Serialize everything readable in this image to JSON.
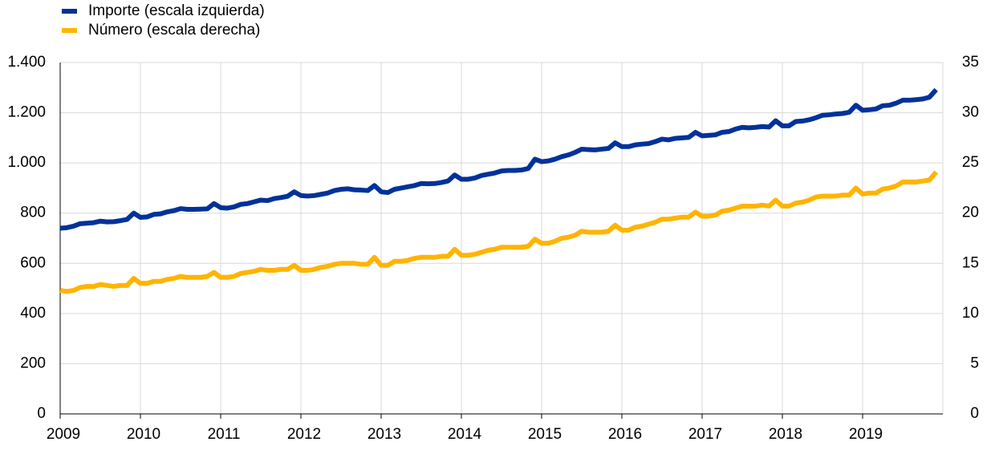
{
  "chart_data": {
    "type": "line",
    "categories": [
      "2009",
      null,
      null,
      null,
      null,
      null,
      null,
      null,
      null,
      null,
      null,
      null,
      "2010",
      null,
      null,
      null,
      null,
      null,
      null,
      null,
      null,
      null,
      null,
      null,
      "2011",
      null,
      null,
      null,
      null,
      null,
      null,
      null,
      null,
      null,
      null,
      null,
      "2012",
      null,
      null,
      null,
      null,
      null,
      null,
      null,
      null,
      null,
      null,
      null,
      "2013",
      null,
      null,
      null,
      null,
      null,
      null,
      null,
      null,
      null,
      null,
      null,
      "2014",
      null,
      null,
      null,
      null,
      null,
      null,
      null,
      null,
      null,
      null,
      null,
      "2015",
      null,
      null,
      null,
      null,
      null,
      null,
      null,
      null,
      null,
      null,
      null,
      "2016",
      null,
      null,
      null,
      null,
      null,
      null,
      null,
      null,
      null,
      null,
      null,
      "2017",
      null,
      null,
      null,
      null,
      null,
      null,
      null,
      null,
      null,
      null,
      null,
      "2018",
      null,
      null,
      null,
      null,
      null,
      null,
      null,
      null,
      null,
      null,
      null,
      "2019",
      null,
      null,
      null,
      null,
      null,
      null,
      null,
      null,
      null,
      null,
      null
    ],
    "series": [
      {
        "name": "Importe (escala izquierda)",
        "color": "#003299",
        "axis": "y",
        "values": [
          740,
          742,
          748,
          758,
          760,
          762,
          768,
          765,
          766,
          770,
          775,
          800,
          783,
          785,
          795,
          797,
          805,
          810,
          818,
          815,
          815,
          816,
          817,
          838,
          822,
          820,
          825,
          835,
          838,
          845,
          852,
          850,
          858,
          862,
          867,
          885,
          870,
          868,
          870,
          875,
          880,
          890,
          895,
          897,
          893,
          892,
          890,
          910,
          885,
          882,
          895,
          900,
          905,
          910,
          918,
          917,
          918,
          922,
          928,
          952,
          935,
          935,
          940,
          950,
          955,
          960,
          968,
          970,
          970,
          972,
          978,
          1015,
          1005,
          1008,
          1015,
          1025,
          1032,
          1042,
          1055,
          1053,
          1052,
          1055,
          1058,
          1080,
          1065,
          1065,
          1072,
          1075,
          1077,
          1085,
          1095,
          1092,
          1098,
          1100,
          1102,
          1122,
          1108,
          1110,
          1112,
          1122,
          1125,
          1135,
          1142,
          1140,
          1142,
          1145,
          1143,
          1168,
          1148,
          1148,
          1165,
          1167,
          1172,
          1180,
          1190,
          1192,
          1195,
          1197,
          1202,
          1230,
          1210,
          1212,
          1215,
          1228,
          1230,
          1238,
          1250,
          1250,
          1252,
          1255,
          1262,
          1292
        ]
      },
      {
        "name": "Número (escala derecha)",
        "color": "#ffb400",
        "axis": "y2",
        "values": [
          12.3,
          12.2,
          12.3,
          12.6,
          12.7,
          12.7,
          12.9,
          12.8,
          12.7,
          12.8,
          12.8,
          13.5,
          13.0,
          13.0,
          13.2,
          13.2,
          13.4,
          13.5,
          13.7,
          13.6,
          13.6,
          13.6,
          13.7,
          14.1,
          13.6,
          13.6,
          13.7,
          14.0,
          14.1,
          14.2,
          14.4,
          14.3,
          14.3,
          14.4,
          14.4,
          14.8,
          14.3,
          14.3,
          14.4,
          14.6,
          14.7,
          14.9,
          15.0,
          15.0,
          15.0,
          14.9,
          14.9,
          15.6,
          14.8,
          14.8,
          15.2,
          15.2,
          15.3,
          15.5,
          15.6,
          15.6,
          15.6,
          15.7,
          15.7,
          16.4,
          15.8,
          15.8,
          15.9,
          16.1,
          16.3,
          16.4,
          16.6,
          16.6,
          16.6,
          16.6,
          16.7,
          17.4,
          17.0,
          17.0,
          17.2,
          17.5,
          17.6,
          17.8,
          18.2,
          18.1,
          18.1,
          18.1,
          18.2,
          18.8,
          18.3,
          18.3,
          18.6,
          18.7,
          18.9,
          19.1,
          19.4,
          19.4,
          19.5,
          19.6,
          19.6,
          20.1,
          19.7,
          19.7,
          19.8,
          20.2,
          20.3,
          20.5,
          20.7,
          20.7,
          20.7,
          20.8,
          20.7,
          21.3,
          20.7,
          20.7,
          21.0,
          21.1,
          21.3,
          21.6,
          21.7,
          21.7,
          21.7,
          21.8,
          21.8,
          22.5,
          21.9,
          22.0,
          22.0,
          22.4,
          22.5,
          22.7,
          23.1,
          23.1,
          23.1,
          23.2,
          23.3,
          24.1
        ]
      }
    ],
    "ylim": [
      0,
      1400
    ],
    "yticks": [
      0,
      200,
      400,
      600,
      800,
      {
        "value": 1000,
        "label": "1.000"
      },
      {
        "value": 1200,
        "label": "1.200"
      },
      {
        "value": 1400,
        "label": "1.400"
      }
    ],
    "y2lim": [
      0,
      35
    ],
    "y2ticks": [
      0,
      5,
      10,
      15,
      20,
      25,
      30,
      35
    ],
    "grid": true,
    "legend": "top-left"
  }
}
